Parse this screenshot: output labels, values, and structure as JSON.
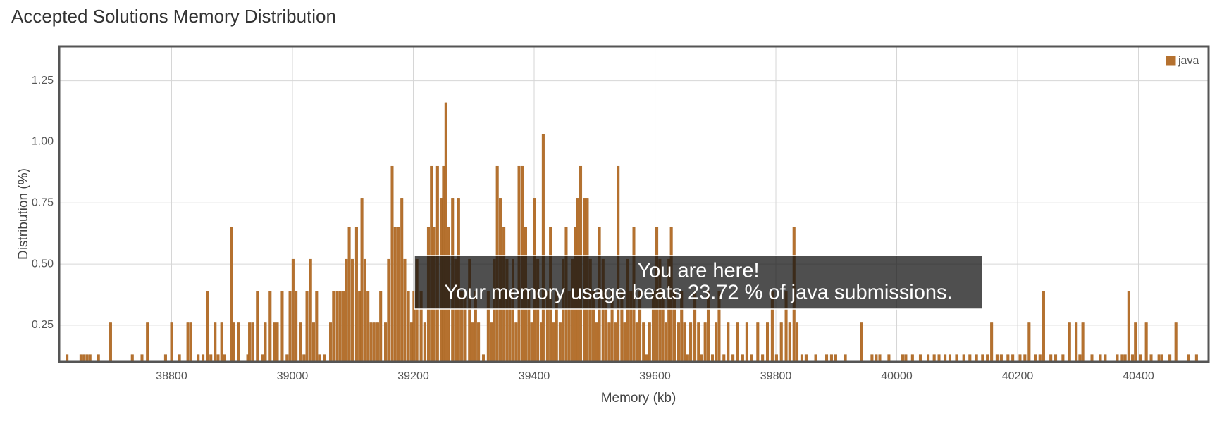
{
  "chart_data": {
    "type": "bar",
    "title": "Accepted Solutions Memory Distribution",
    "x_label": "Memory (kb)",
    "y_label": "Distribution (%)",
    "annotation": [
      "You are here!",
      "Your memory usage beats 23.72 % of java submissions."
    ],
    "legend": "top-right",
    "grid": true,
    "xlim": [
      38614,
      40516
    ],
    "ylim": [
      0.1,
      1.39
    ],
    "xticks": [
      38800,
      39000,
      39200,
      39400,
      39600,
      39800,
      40000,
      40200,
      40400
    ],
    "yticks": [
      0.25,
      {
        "value": 0.5,
        "label": "0.50"
      },
      0.75,
      {
        "value": 1,
        "label": "1.00"
      },
      1.25
    ],
    "x": [
      38627,
      38650,
      38655,
      38660,
      38665,
      38679,
      38699,
      38735,
      38751,
      38760,
      38790,
      38800,
      38813,
      38827,
      38832,
      38844,
      38852,
      38859,
      38865,
      38872,
      38877,
      38883,
      38888,
      38899,
      38903,
      38911,
      38926,
      38929,
      38934,
      38942,
      38950,
      38955,
      38963,
      38970,
      38975,
      38983,
      38991,
      38996,
      39001,
      39006,
      39014,
      39019,
      39024,
      39030,
      39035,
      39040,
      39045,
      39053,
      39063,
      39068,
      39074,
      39079,
      39084,
      39089,
      39094,
      39099,
      39106,
      39111,
      39115,
      39120,
      39125,
      39130,
      39135,
      39141,
      39146,
      39154,
      39159,
      39165,
      39170,
      39175,
      39181,
      39186,
      39192,
      39197,
      39201,
      39206,
      39213,
      39219,
      39225,
      39230,
      39235,
      39240,
      39246,
      39250,
      39254,
      39258,
      39265,
      39270,
      39275,
      39280,
      39285,
      39293,
      39298,
      39303,
      39308,
      39316,
      39324,
      39329,
      39334,
      39339,
      39344,
      39350,
      39355,
      39360,
      39365,
      39370,
      39375,
      39381,
      39386,
      39391,
      39396,
      39401,
      39406,
      39412,
      39415,
      39422,
      39427,
      39432,
      39437,
      39443,
      39448,
      39453,
      39458,
      39463,
      39468,
      39472,
      39477,
      39483,
      39488,
      39493,
      39498,
      39503,
      39508,
      39514,
      39519,
      39524,
      39529,
      39534,
      39539,
      39545,
      39550,
      39555,
      39560,
      39565,
      39570,
      39575,
      39581,
      39586,
      39591,
      39597,
      39603,
      39608,
      39613,
      39618,
      39623,
      39627,
      39632,
      39639,
      39644,
      39649,
      39654,
      39659,
      39666,
      39672,
      39677,
      39683,
      39688,
      39695,
      39701,
      39706,
      39714,
      39721,
      39729,
      39737,
      39745,
      39752,
      39760,
      39770,
      39778,
      39786,
      39794,
      39801,
      39809,
      39817,
      39823,
      39830,
      39835,
      39843,
      39850,
      39866,
      39884,
      39892,
      39899,
      39915,
      39942,
      39959,
      39966,
      39972,
      39987,
      40010,
      40015,
      40026,
      40039,
      40052,
      40062,
      40070,
      40080,
      40088,
      40099,
      40111,
      40121,
      40132,
      40142,
      40150,
      40157,
      40166,
      40173,
      40184,
      40192,
      40204,
      40212,
      40219,
      40230,
      40237,
      40243,
      40255,
      40263,
      40275,
      40286,
      40297,
      40303,
      40308,
      40323,
      40337,
      40345,
      40365,
      40373,
      40378,
      40384,
      40390,
      40395,
      40404,
      40413,
      40421,
      40434,
      40439,
      40452,
      40462,
      40483,
      40496
    ],
    "series": [
      {
        "name": "java",
        "color": "#b5712f",
        "values": [
          0.13,
          0.13,
          0.13,
          0.13,
          0.13,
          0.13,
          0.26,
          0.13,
          0.13,
          0.26,
          0.13,
          0.26,
          0.13,
          0.26,
          0.26,
          0.13,
          0.13,
          0.39,
          0.13,
          0.26,
          0.13,
          0.26,
          0.13,
          0.65,
          0.26,
          0.26,
          0.13,
          0.26,
          0.26,
          0.39,
          0.13,
          0.26,
          0.39,
          0.26,
          0.26,
          0.39,
          0.13,
          0.39,
          0.52,
          0.39,
          0.26,
          0.13,
          0.39,
          0.52,
          0.26,
          0.39,
          0.13,
          0.13,
          0.26,
          0.39,
          0.39,
          0.39,
          0.39,
          0.52,
          0.65,
          0.52,
          0.65,
          0.39,
          0.77,
          0.52,
          0.39,
          0.26,
          0.26,
          0.26,
          0.39,
          0.26,
          0.52,
          0.9,
          0.65,
          0.65,
          0.77,
          0.52,
          0.39,
          0.26,
          0.39,
          0.52,
          0.39,
          0.26,
          0.65,
          0.9,
          0.65,
          0.9,
          0.77,
          0.9,
          1.16,
          0.65,
          0.77,
          0.52,
          0.77,
          0.39,
          0.39,
          0.52,
          0.26,
          0.39,
          0.26,
          0.13,
          0.39,
          0.26,
          0.52,
          0.9,
          0.77,
          0.65,
          0.52,
          0.39,
          0.52,
          0.26,
          0.9,
          0.9,
          0.65,
          0.39,
          0.26,
          0.77,
          0.52,
          0.26,
          1.03,
          0.39,
          0.65,
          0.26,
          0.39,
          0.26,
          0.52,
          0.65,
          0.39,
          0.52,
          0.65,
          0.77,
          0.9,
          0.77,
          0.77,
          0.52,
          0.39,
          0.26,
          0.65,
          0.52,
          0.39,
          0.26,
          0.39,
          0.26,
          0.9,
          0.39,
          0.26,
          0.52,
          0.39,
          0.65,
          0.26,
          0.39,
          0.26,
          0.13,
          0.26,
          0.39,
          0.65,
          0.52,
          0.39,
          0.26,
          0.52,
          0.65,
          0.39,
          0.26,
          0.39,
          0.26,
          0.13,
          0.26,
          0.39,
          0.26,
          0.13,
          0.26,
          0.39,
          0.13,
          0.26,
          0.39,
          0.13,
          0.26,
          0.13,
          0.26,
          0.13,
          0.26,
          0.13,
          0.26,
          0.13,
          0.26,
          0.39,
          0.13,
          0.26,
          0.39,
          0.26,
          0.65,
          0.26,
          0.13,
          0.13,
          0.13,
          0.13,
          0.13,
          0.13,
          0.13,
          0.26,
          0.13,
          0.13,
          0.13,
          0.13,
          0.13,
          0.13,
          0.13,
          0.13,
          0.13,
          0.13,
          0.13,
          0.13,
          0.13,
          0.13,
          0.13,
          0.13,
          0.13,
          0.13,
          0.13,
          0.26,
          0.13,
          0.13,
          0.13,
          0.13,
          0.13,
          0.13,
          0.26,
          0.13,
          0.13,
          0.39,
          0.13,
          0.13,
          0.13,
          0.26,
          0.26,
          0.13,
          0.26,
          0.13,
          0.13,
          0.13,
          0.13,
          0.13,
          0.13,
          0.39,
          0.13,
          0.26,
          0.13,
          0.26,
          0.13,
          0.13,
          0.13,
          0.13,
          0.26,
          0.13,
          0.13
        ]
      }
    ]
  }
}
